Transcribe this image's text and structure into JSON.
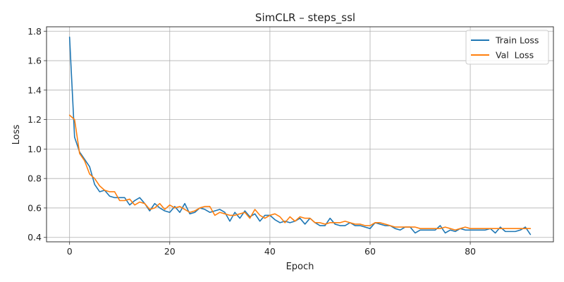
{
  "chart_data": {
    "type": "line",
    "title": "SimCLR – steps_ssl",
    "xlabel": "Epoch",
    "ylabel": "Loss",
    "xlim": [
      -4.6,
      96.6
    ],
    "ylim": [
      0.37,
      1.83
    ],
    "xticks": [
      0,
      20,
      40,
      60,
      80
    ],
    "yticks": [
      0.4,
      0.6,
      0.8,
      1.0,
      1.2,
      1.4,
      1.6,
      1.8
    ],
    "xtick_labels": [
      "0",
      "20",
      "40",
      "60",
      "80"
    ],
    "ytick_labels": [
      "0.4",
      "0.6",
      "0.8",
      "1.0",
      "1.2",
      "1.4",
      "1.6",
      "1.8"
    ],
    "grid": true,
    "legend_position": "top-right",
    "series": [
      {
        "name": "Train Loss",
        "color": "#1f77b4",
        "values": [
          1.76,
          1.08,
          0.98,
          0.93,
          0.88,
          0.76,
          0.71,
          0.72,
          0.68,
          0.67,
          0.67,
          0.67,
          0.62,
          0.65,
          0.67,
          0.63,
          0.58,
          0.63,
          0.6,
          0.58,
          0.57,
          0.61,
          0.57,
          0.63,
          0.56,
          0.57,
          0.6,
          0.59,
          0.57,
          0.58,
          0.59,
          0.57,
          0.51,
          0.57,
          0.53,
          0.58,
          0.54,
          0.56,
          0.51,
          0.55,
          0.55,
          0.52,
          0.5,
          0.51,
          0.5,
          0.51,
          0.53,
          0.49,
          0.53,
          0.5,
          0.48,
          0.48,
          0.53,
          0.49,
          0.48,
          0.48,
          0.5,
          0.48,
          0.48,
          0.47,
          0.46,
          0.5,
          0.49,
          0.48,
          0.48,
          0.46,
          0.45,
          0.47,
          0.47,
          0.43,
          0.45,
          0.45,
          0.45,
          0.45,
          0.48,
          0.43,
          0.45,
          0.44,
          0.46,
          0.45,
          0.45,
          0.45,
          0.45,
          0.45,
          0.46,
          0.43,
          0.47,
          0.44,
          0.44,
          0.44,
          0.45,
          0.47,
          0.42
        ]
      },
      {
        "name": "Val  Loss",
        "color": "#ff7f0e",
        "values": [
          1.23,
          1.2,
          0.97,
          0.92,
          0.83,
          0.8,
          0.75,
          0.72,
          0.71,
          0.71,
          0.65,
          0.65,
          0.66,
          0.62,
          0.64,
          0.63,
          0.59,
          0.6,
          0.63,
          0.59,
          0.62,
          0.6,
          0.61,
          0.59,
          0.57,
          0.58,
          0.6,
          0.61,
          0.61,
          0.55,
          0.57,
          0.56,
          0.55,
          0.55,
          0.56,
          0.57,
          0.53,
          0.59,
          0.55,
          0.53,
          0.55,
          0.56,
          0.54,
          0.5,
          0.54,
          0.51,
          0.54,
          0.53,
          0.53,
          0.5,
          0.5,
          0.49,
          0.5,
          0.5,
          0.5,
          0.51,
          0.5,
          0.49,
          0.49,
          0.48,
          0.48,
          0.5,
          0.5,
          0.49,
          0.48,
          0.47,
          0.47,
          0.47,
          0.47,
          0.47,
          0.46,
          0.46,
          0.46,
          0.46,
          0.46,
          0.47,
          0.46,
          0.45,
          0.46,
          0.47,
          0.46,
          0.46,
          0.46,
          0.46,
          0.46,
          0.46,
          0.46,
          0.46,
          0.46,
          0.46,
          0.46,
          0.46,
          0.46
        ]
      }
    ]
  }
}
